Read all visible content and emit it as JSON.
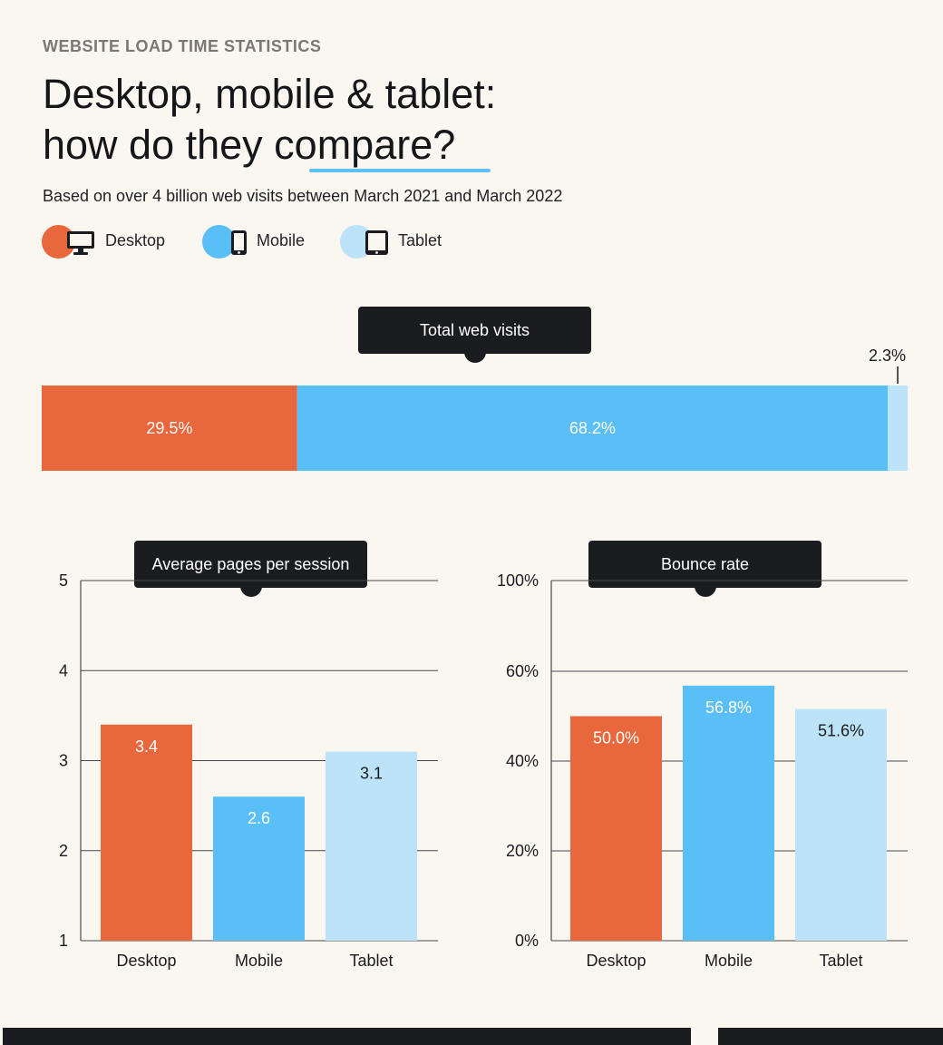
{
  "header": {
    "eyebrow": "WEBSITE LOAD TIME STATISTICS",
    "title_line1": "Desktop, mobile & tablet:",
    "title_line2": "how do they compare?",
    "subtitle": "Based on over 4 billion web visits between March 2021 and March 2022"
  },
  "legend": [
    {
      "label": "Desktop",
      "color": "#e8673c",
      "icon": "desktop-monitor-icon"
    },
    {
      "label": "Mobile",
      "color": "#5bbff7",
      "icon": "mobile-phone-icon"
    },
    {
      "label": "Tablet",
      "color": "#bde3f8",
      "icon": "tablet-icon"
    }
  ],
  "colors": {
    "desktop": "#e8673c",
    "mobile": "#5bbff7",
    "tablet": "#bde3f8",
    "dark": "#1b1c20"
  },
  "chart_data": [
    {
      "type": "bar",
      "orientation": "horizontal-stacked",
      "title": "Total web visits",
      "categories": [
        "Desktop",
        "Mobile",
        "Tablet"
      ],
      "values": [
        29.5,
        68.2,
        2.3
      ],
      "labels": [
        "29.5%",
        "68.2%",
        "2.3%"
      ],
      "unit": "%"
    },
    {
      "type": "bar",
      "title": "Average pages per session",
      "categories": [
        "Desktop",
        "Mobile",
        "Tablet"
      ],
      "values": [
        3.4,
        2.6,
        3.1
      ],
      "labels": [
        "3.4",
        "2.6",
        "3.1"
      ],
      "ylim": [
        1,
        5
      ],
      "yticks": [
        "1",
        "2",
        "3",
        "4",
        "5"
      ],
      "grid": true
    },
    {
      "type": "bar",
      "title": "Bounce rate",
      "categories": [
        "Desktop",
        "Mobile",
        "Tablet"
      ],
      "values": [
        50.0,
        56.8,
        51.6
      ],
      "labels": [
        "50.0%",
        "56.8%",
        "51.6%"
      ],
      "ylim": [
        0,
        100
      ],
      "yticks": [
        "0%",
        "20%",
        "40%",
        "60%",
        "100%"
      ],
      "grid": true
    }
  ]
}
